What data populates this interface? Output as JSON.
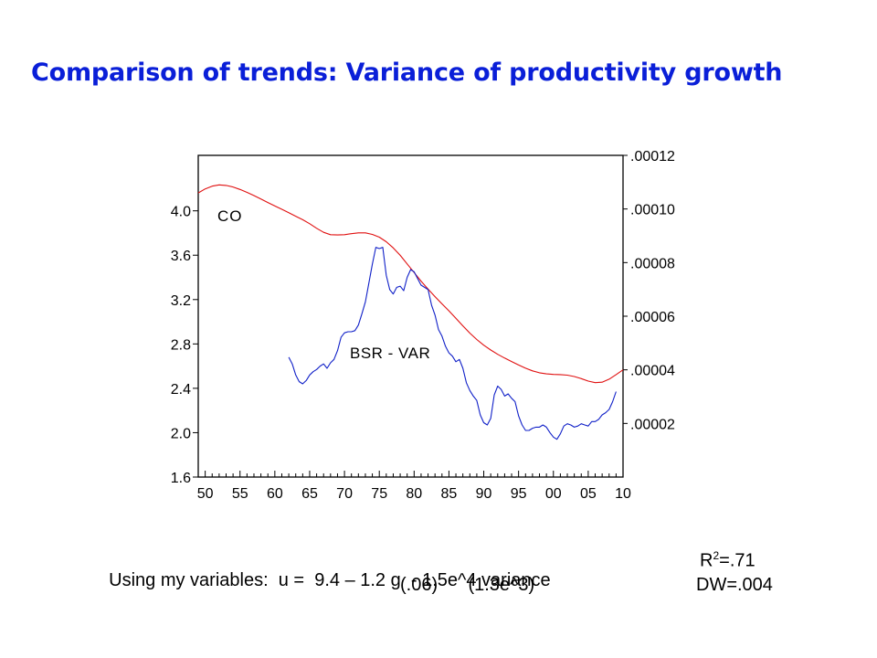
{
  "title": "Comparison of trends: Variance of  productivity growth",
  "chart_data": {
    "type": "line",
    "x_ticks": [
      "50",
      "55",
      "60",
      "65",
      "70",
      "75",
      "80",
      "85",
      "90",
      "95",
      "00",
      "05",
      "10"
    ],
    "xlim": [
      1949,
      2010
    ],
    "left_axis": {
      "ticks": [
        "1.6",
        "2.0",
        "2.4",
        "2.8",
        "3.2",
        "3.6",
        "4.0"
      ],
      "ylim": [
        1.6,
        4.5
      ]
    },
    "right_axis": {
      "ticks": [
        ".00002",
        ".00004",
        ".00006",
        ".00008",
        ".00010",
        ".00012"
      ],
      "ylim": [
        0.0,
        0.00012
      ]
    },
    "series": [
      {
        "name": "CO",
        "axis": "right",
        "color": "#e01010",
        "x": [
          1949,
          1950,
          1951,
          1952,
          1953,
          1954,
          1955,
          1956,
          1957,
          1958,
          1959,
          1960,
          1961,
          1962,
          1963,
          1964,
          1965,
          1966,
          1967,
          1968,
          1969,
          1970,
          1971,
          1972,
          1973,
          1974,
          1975,
          1976,
          1977,
          1978,
          1979,
          1980,
          1981,
          1982,
          1983,
          1984,
          1985,
          1986,
          1987,
          1988,
          1989,
          1990,
          1991,
          1992,
          1993,
          1994,
          1995,
          1996,
          1997,
          1998,
          1999,
          2000,
          2001,
          2002,
          2003,
          2004,
          2005,
          2006,
          2007,
          2008,
          2009,
          2010
        ],
        "values": [
          0.000106,
          0.0001075,
          0.0001085,
          0.000109,
          0.0001088,
          0.0001082,
          0.0001073,
          0.0001062,
          0.000105,
          0.0001037,
          0.0001024,
          0.0001011,
          9.99e-05,
          9.86e-05,
          9.73e-05,
          9.6e-05,
          9.45e-05,
          9.28e-05,
          9.13e-05,
          9.04e-05,
          9.03e-05,
          9.04e-05,
          9.08e-05,
          9.11e-05,
          9.11e-05,
          9.05e-05,
          8.95e-05,
          8.78e-05,
          8.55e-05,
          8.27e-05,
          7.95e-05,
          7.63e-05,
          7.31e-05,
          7.01e-05,
          6.73e-05,
          6.46e-05,
          6.2e-05,
          5.92e-05,
          5.64e-05,
          5.37e-05,
          5.13e-05,
          4.92e-05,
          4.74e-05,
          4.58e-05,
          4.44e-05,
          4.31e-05,
          4.18e-05,
          4.06e-05,
          3.96e-05,
          3.89e-05,
          3.85e-05,
          3.83e-05,
          3.82e-05,
          3.8e-05,
          3.75e-05,
          3.67e-05,
          3.58e-05,
          3.52e-05,
          3.54e-05,
          3.65e-05,
          3.82e-05,
          4e-05
        ]
      },
      {
        "name": "BSR - VAR",
        "axis": "left",
        "color": "#1020c8",
        "x": [
          1962,
          1962.5,
          1963,
          1963.5,
          1964,
          1964.5,
          1965,
          1965.5,
          1966,
          1966.5,
          1967,
          1967.5,
          1968,
          1968.5,
          1969,
          1969.5,
          1970,
          1970.5,
          1971,
          1971.5,
          1972,
          1972.5,
          1973,
          1973.5,
          1974,
          1974.5,
          1975,
          1975.5,
          1976,
          1976.5,
          1977,
          1977.5,
          1978,
          1978.5,
          1979,
          1979.5,
          1980,
          1980.5,
          1981,
          1981.5,
          1982,
          1982.5,
          1983,
          1983.5,
          1984,
          1984.5,
          1985,
          1985.5,
          1986,
          1986.5,
          1987,
          1987.5,
          1988,
          1988.5,
          1989,
          1989.5,
          1990,
          1990.5,
          1991,
          1991.5,
          1992,
          1992.5,
          1993,
          1993.5,
          1994,
          1994.5,
          1995,
          1995.5,
          1996,
          1996.5,
          1997,
          1997.5,
          1998,
          1998.5,
          1999,
          1999.5,
          2000,
          2000.5,
          2001,
          2001.5,
          2002,
          2002.5,
          2003,
          2003.5,
          2004,
          2004.5,
          2005,
          2005.5,
          2006,
          2006.5,
          2007,
          2007.5,
          2008,
          2008.5,
          2009
        ],
        "values": [
          2.68,
          2.62,
          2.52,
          2.46,
          2.44,
          2.47,
          2.52,
          2.55,
          2.57,
          2.6,
          2.62,
          2.58,
          2.63,
          2.66,
          2.74,
          2.86,
          2.9,
          2.91,
          2.91,
          2.92,
          2.97,
          3.07,
          3.18,
          3.35,
          3.52,
          3.67,
          3.66,
          3.67,
          3.42,
          3.29,
          3.25,
          3.31,
          3.32,
          3.28,
          3.4,
          3.47,
          3.45,
          3.39,
          3.33,
          3.31,
          3.29,
          3.15,
          3.06,
          2.93,
          2.87,
          2.78,
          2.72,
          2.69,
          2.64,
          2.66,
          2.58,
          2.45,
          2.38,
          2.33,
          2.29,
          2.16,
          2.09,
          2.07,
          2.13,
          2.34,
          2.42,
          2.39,
          2.33,
          2.35,
          2.31,
          2.28,
          2.15,
          2.07,
          2.02,
          2.02,
          2.04,
          2.05,
          2.05,
          2.07,
          2.05,
          2.0,
          1.96,
          1.94,
          1.99,
          2.06,
          2.08,
          2.07,
          2.05,
          2.06,
          2.08,
          2.07,
          2.06,
          2.1,
          2.1,
          2.12,
          2.16,
          2.18,
          2.21,
          2.28,
          2.37
        ]
      }
    ]
  },
  "equation": {
    "line1": "Using my variables:  u =  9.4 – 1.2 g  - 1.5e^4 variance",
    "r_base": "R",
    "r_sup": "2",
    "r_value": "=.71",
    "line2_errors": "(.06)      (1.3e^3)",
    "dw": "DW=.004"
  }
}
